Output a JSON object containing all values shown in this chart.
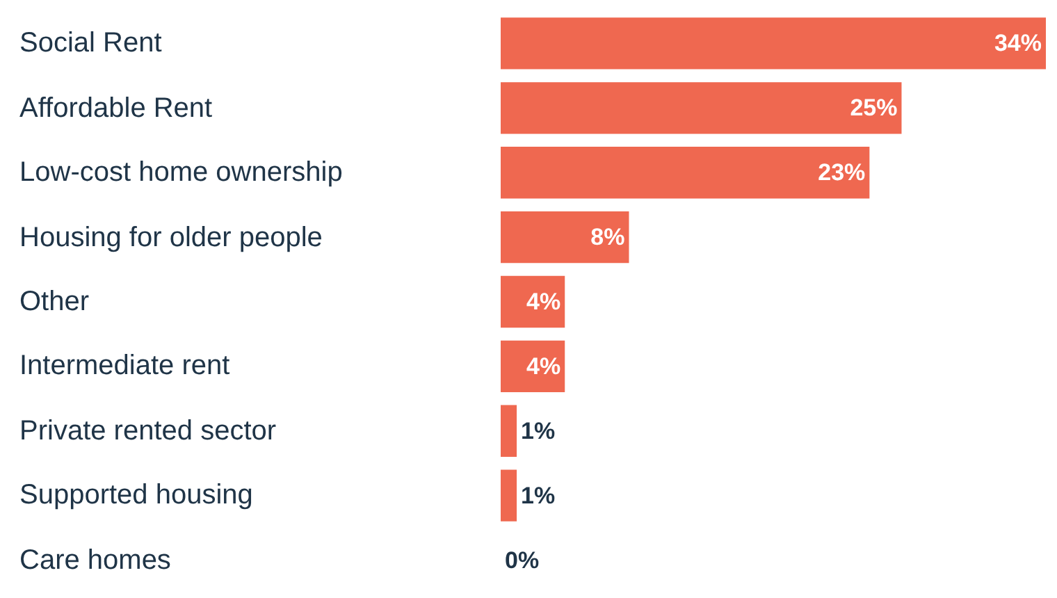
{
  "chart_data": {
    "type": "bar",
    "orientation": "horizontal",
    "categories": [
      "Social Rent",
      "Affordable Rent",
      "Low-cost home ownership",
      "Housing for older people",
      "Other",
      "Intermediate rent",
      "Private rented sector",
      "Supported housing",
      "Care homes"
    ],
    "values": [
      34,
      25,
      23,
      8,
      4,
      4,
      1,
      1,
      0
    ],
    "value_labels": [
      "34%",
      "25%",
      "23%",
      "8%",
      "4%",
      "4%",
      "1%",
      "1%",
      "0%"
    ],
    "color": "#ef6850",
    "xlim": [
      0,
      34
    ],
    "tick_labels": "y"
  }
}
